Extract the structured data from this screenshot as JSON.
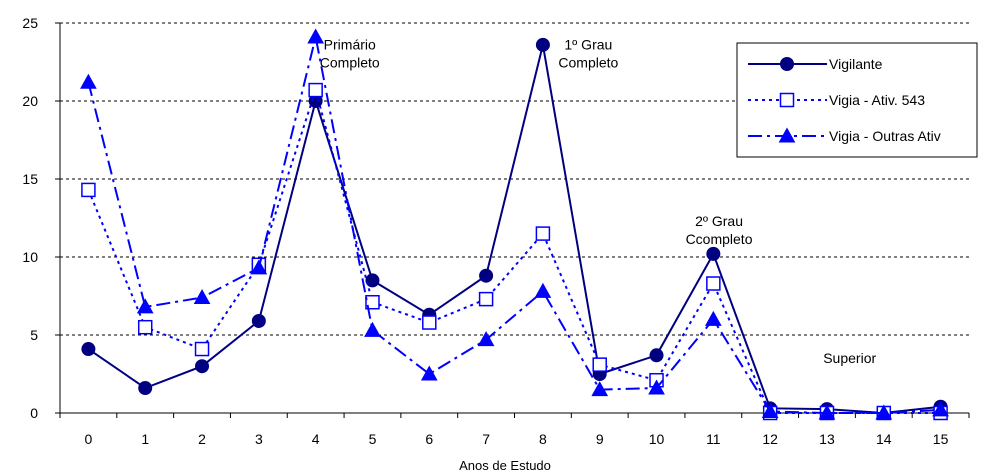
{
  "chart_data": {
    "type": "line",
    "x": [
      0,
      1,
      2,
      3,
      4,
      5,
      6,
      7,
      8,
      9,
      10,
      11,
      12,
      13,
      14,
      15
    ],
    "xlabel": "Anos de Estudo",
    "ylabel": "",
    "title": "",
    "ylim": [
      0,
      25
    ],
    "yticks": [
      0,
      5,
      10,
      15,
      20,
      25
    ],
    "grid": "horizontal dotted",
    "legend_position": "top-right",
    "series": [
      {
        "name": "Vigilante",
        "color": "#000080",
        "marker": "filled-circle",
        "line": "solid",
        "values": [
          4.1,
          1.6,
          3.0,
          5.9,
          20.0,
          8.5,
          6.3,
          8.8,
          23.6,
          2.5,
          3.7,
          10.2,
          0.3,
          0.25,
          0.0,
          0.4
        ]
      },
      {
        "name": "Vigia  - Ativ. 543",
        "color": "#0000FF",
        "marker": "open-square",
        "line": "dotted",
        "values": [
          14.3,
          5.5,
          4.1,
          9.5,
          20.7,
          7.1,
          5.8,
          7.3,
          11.5,
          3.1,
          2.1,
          8.3,
          0.0,
          0.0,
          0.0,
          0.0
        ]
      },
      {
        "name": "Vigia - Outras Ativ",
        "color": "#0000FF",
        "marker": "filled-triangle",
        "line": "dashdot",
        "values": [
          21.2,
          6.8,
          7.4,
          9.3,
          24.1,
          5.3,
          2.5,
          4.7,
          7.8,
          1.5,
          1.6,
          6.0,
          0.1,
          0.0,
          0.0,
          0.2
        ]
      }
    ],
    "annotations": [
      {
        "lines": [
          "Primário",
          "Completo"
        ],
        "x": 4.6,
        "y": 23.3
      },
      {
        "lines": [
          "1º Grau",
          "Completo"
        ],
        "x": 8.8,
        "y": 23.3
      },
      {
        "lines": [
          "2º Grau",
          "Ccompleto"
        ],
        "x": 11.1,
        "y": 12.0
      },
      {
        "lines": [
          "Superior"
        ],
        "x": 13.4,
        "y": 3.2
      }
    ]
  }
}
